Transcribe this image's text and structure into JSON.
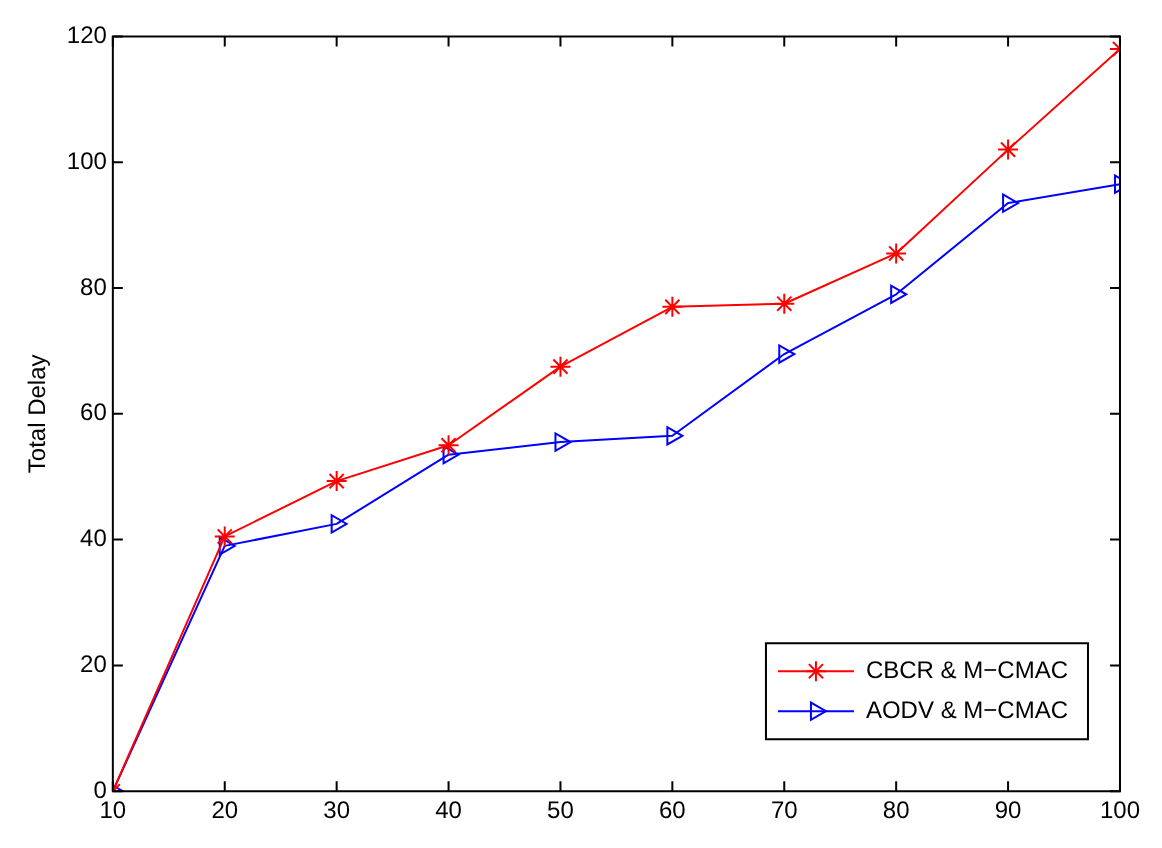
{
  "chart_data": {
    "type": "line",
    "ylabel": "Total Delay",
    "x": [
      10,
      20,
      30,
      40,
      50,
      60,
      70,
      80,
      90,
      100
    ],
    "series": [
      {
        "name": "CBCR & M−CMAC",
        "color": "#ff0000",
        "marker": "cross",
        "values": [
          0,
          40.5,
          49.3,
          55,
          67.5,
          77,
          77.5,
          85.5,
          102,
          118
        ]
      },
      {
        "name": "AODV & M−CMAC",
        "color": "#0000ff",
        "marker": "triangle",
        "values": [
          0,
          39,
          42.5,
          53.5,
          55.5,
          56.5,
          69.5,
          79,
          93.5,
          96.5
        ]
      }
    ],
    "xlim": [
      10,
      100
    ],
    "xticks": [
      10,
      20,
      30,
      40,
      50,
      60,
      70,
      80,
      90,
      100
    ],
    "ylim": [
      0,
      120
    ],
    "yticks": [
      0,
      20,
      40,
      60,
      80,
      100,
      120
    ],
    "grid": false,
    "legend": "bottom right",
    "line_style": "solid"
  }
}
